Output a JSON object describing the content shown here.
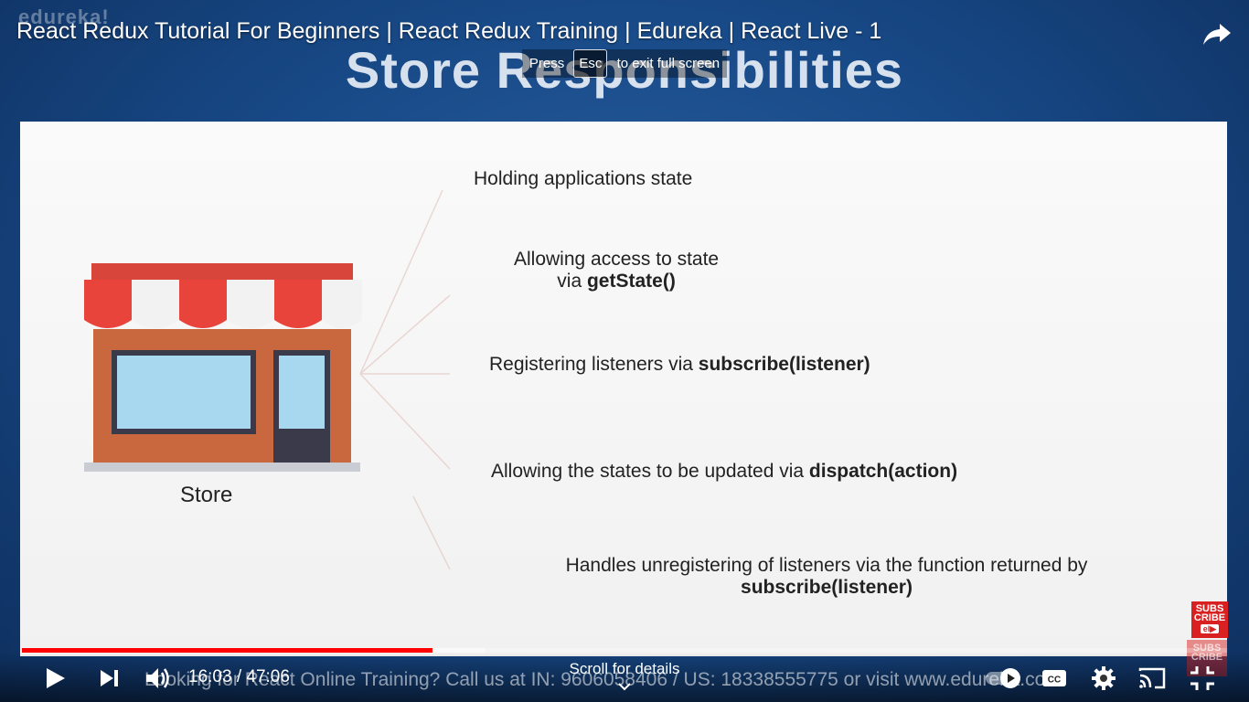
{
  "watermark": "edureka!",
  "video": {
    "title": "React Redux Tutorial For Beginners | React Redux Training | Edureka | React Live - 1",
    "current_time": "16:03",
    "separator": " / ",
    "duration": "47:06",
    "played_fraction": 0.341,
    "buffered_fraction": 0.385
  },
  "fullscreen_hint": {
    "prefix": "Press",
    "key": "Esc",
    "suffix": "to exit full screen"
  },
  "slide": {
    "heading": "Store Responsibilities",
    "store_caption": "Store",
    "points": [
      {
        "text": "Holding applications state",
        "bold": ""
      },
      {
        "text": "Allowing access to state",
        "line2": "via ",
        "bold": "getState()"
      },
      {
        "text": "Registering listeners via ",
        "bold": "subscribe(listener)"
      },
      {
        "text": "Allowing the states to be updated via ",
        "bold": "dispatch(action)"
      },
      {
        "text": "Handles unregistering of listeners via the function returned by",
        "bold": "subscribe(listener)"
      }
    ]
  },
  "ticker": "Looking for React Online Training? Call us at IN: 9606058406 / US: 18338555775 or visit www.edureka.co",
  "scroll_hint": "Scroll for details",
  "subscribe": {
    "line1": "SUBS",
    "line2": "CRIBE",
    "tag": "el▶"
  },
  "icons": [
    "play-icon",
    "next-icon",
    "volume-icon",
    "autoplay-toggle-icon",
    "captions-icon",
    "settings-icon",
    "cast-icon",
    "exit-fullscreen-icon",
    "share-icon"
  ],
  "colors": {
    "progress": "#ff0000",
    "awning_red": "#e8443b",
    "wall": "#c9673e"
  }
}
